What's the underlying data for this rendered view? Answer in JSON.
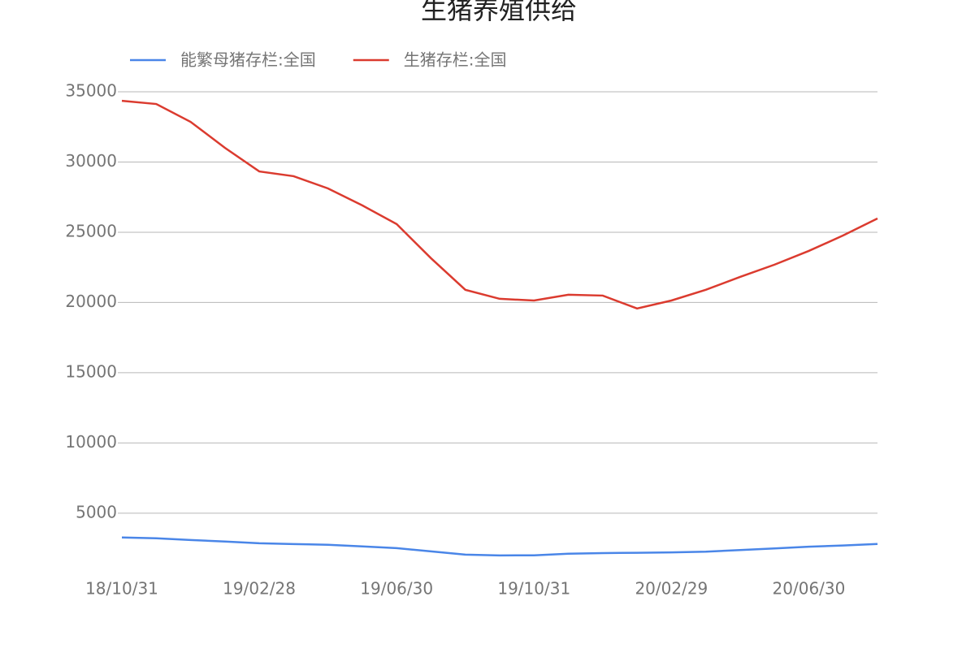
{
  "chart_data": {
    "type": "line",
    "title": "生猪养殖供给",
    "categories": [
      "18/10/31",
      null,
      null,
      null,
      "19/02/28",
      null,
      null,
      null,
      "19/06/30",
      null,
      null,
      null,
      "19/10/31",
      null,
      null,
      null,
      "20/02/29",
      null,
      null,
      null,
      "20/06/30",
      null,
      null
    ],
    "series": [
      {
        "name": "能繁母猪存栏:全国",
        "color": "#4a86e8",
        "values": [
          3270,
          3210,
          3090,
          2980,
          2860,
          2800,
          2750,
          2630,
          2510,
          2280,
          2050,
          1990,
          2000,
          2110,
          2160,
          2180,
          2210,
          2260,
          2370,
          2490,
          2610,
          2700,
          2810
        ]
      },
      {
        "name": "生猪存栏:全国",
        "color": "#db3b2f",
        "values": [
          34360,
          34130,
          32860,
          31010,
          29330,
          28990,
          28120,
          26910,
          25580,
          23150,
          20900,
          20260,
          20140,
          20550,
          20490,
          19570,
          20140,
          20900,
          21820,
          22690,
          23670,
          24770,
          25980
        ]
      }
    ],
    "ylim": [
      1000,
      35000
    ],
    "yticks": [
      5000,
      10000,
      15000,
      20000,
      25000,
      30000,
      35000
    ],
    "grid": true,
    "legend": "top-left"
  }
}
